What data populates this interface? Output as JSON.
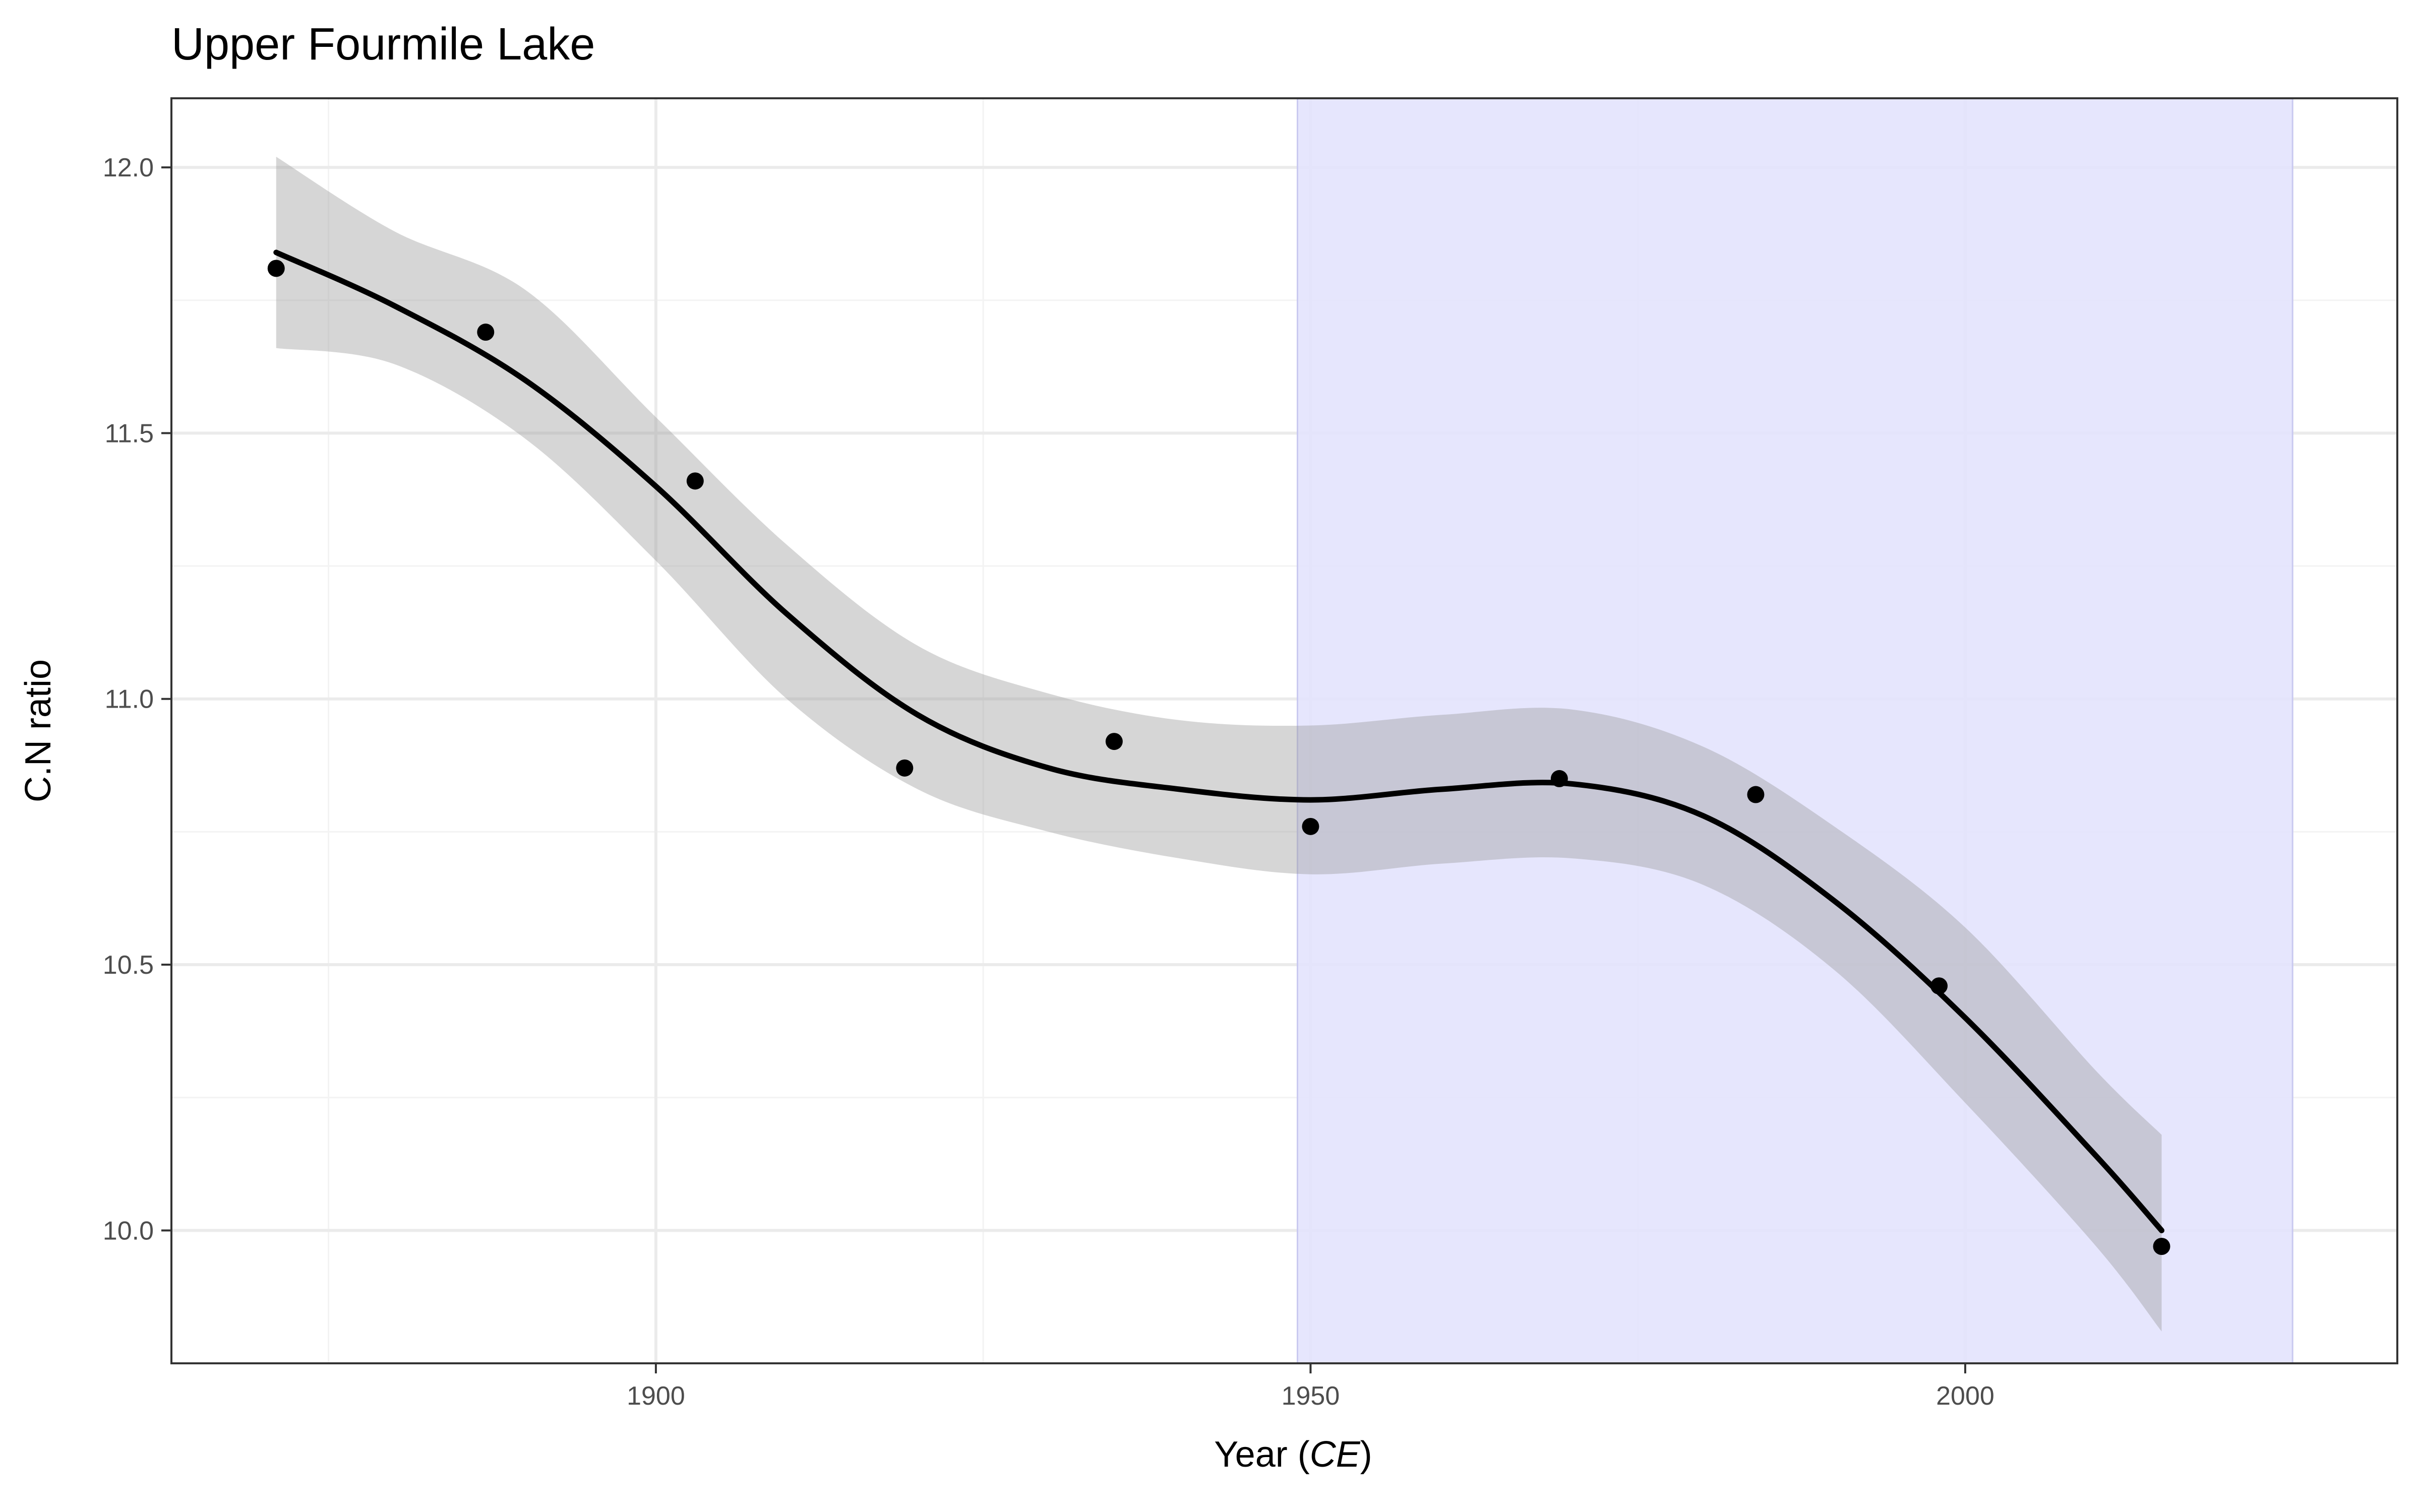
{
  "chart_data": {
    "type": "scatter",
    "title": "Upper Fourmile Lake",
    "xlabel_prefix": "Year (",
    "xlabel_italic": "CE",
    "xlabel_suffix": ")",
    "ylabel": "C.N ratio",
    "xlim": [
      1863,
      2033
    ],
    "ylim": [
      9.75,
      12.13
    ],
    "x_ticks": [
      1900,
      1950,
      2000
    ],
    "x_tick_labels": [
      "1900",
      "1950",
      "2000"
    ],
    "x_minor_ticks": [
      1875,
      1925,
      1975,
      2025
    ],
    "y_ticks": [
      10.0,
      10.5,
      11.0,
      11.5,
      12.0
    ],
    "y_tick_labels": [
      "10.0",
      "10.5",
      "11.0",
      "11.5",
      "12.0"
    ],
    "y_minor_ticks": [
      10.25,
      10.75,
      11.25,
      11.75
    ],
    "grid": true,
    "shaded_region": {
      "x_start": 1949,
      "x_end": 2025,
      "color": "#e3e3fd"
    },
    "points": {
      "x": [
        1871,
        1887,
        1903,
        1919,
        1935,
        1950,
        1969,
        1984,
        1998,
        2015
      ],
      "y": [
        11.81,
        11.69,
        11.41,
        10.87,
        10.92,
        10.76,
        10.85,
        10.82,
        10.46,
        9.97
      ]
    },
    "smooth": {
      "x": [
        1871,
        1880,
        1890,
        1900,
        1910,
        1920,
        1930,
        1940,
        1950,
        1960,
        1970,
        1980,
        1990,
        2000,
        2010,
        2015
      ],
      "y": [
        11.84,
        11.74,
        11.6,
        11.4,
        11.16,
        10.97,
        10.87,
        10.83,
        10.81,
        10.83,
        10.84,
        10.78,
        10.62,
        10.4,
        10.14,
        10.0
      ],
      "lower": [
        11.66,
        11.63,
        11.49,
        11.26,
        11.0,
        10.83,
        10.75,
        10.7,
        10.67,
        10.69,
        10.7,
        10.65,
        10.49,
        10.24,
        9.97,
        9.81
      ],
      "upper": [
        12.02,
        11.88,
        11.77,
        11.53,
        11.29,
        11.1,
        11.01,
        10.96,
        10.95,
        10.97,
        10.98,
        10.91,
        10.76,
        10.57,
        10.3,
        10.18
      ]
    },
    "colors": {
      "points": "#000000",
      "line": "#000000",
      "ribbon": "#999999",
      "grid_major": "#ebebeb",
      "grid_minor": "#f3f3f3",
      "panel_border": "#333333",
      "tick_label": "#4d4d4d"
    }
  }
}
